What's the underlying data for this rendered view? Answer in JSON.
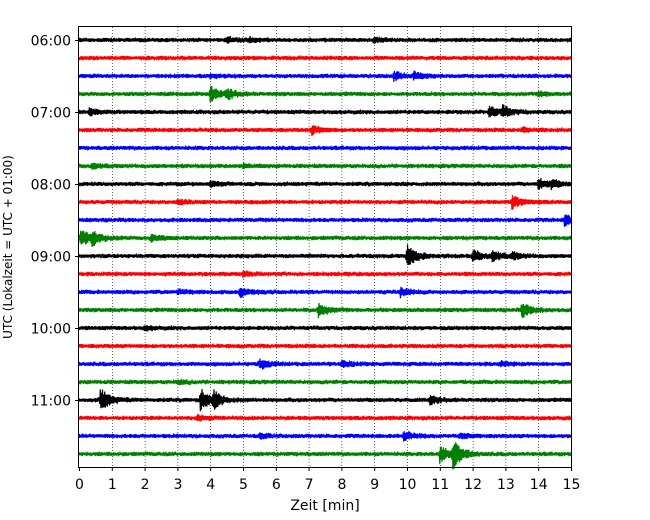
{
  "chart_data": {
    "type": "line",
    "title": "",
    "xlabel": "Zeit  [min]",
    "ylabel": "UTC (Lokalzeit = UTC + 01:00)",
    "xlim": [
      0,
      15
    ],
    "x_ticks": [
      "0",
      "1",
      "2",
      "3",
      "4",
      "5",
      "6",
      "7",
      "8",
      "9",
      "10",
      "11",
      "12",
      "13",
      "14",
      "15"
    ],
    "y_ticks": [
      "06:00",
      "07:00",
      "08:00",
      "09:00",
      "10:00",
      "11:00"
    ],
    "grid": "vertical-dotted",
    "row_interval_min": 15,
    "row_colors": [
      "#000000",
      "#ff0000",
      "#0000ff",
      "#008000"
    ],
    "series": [
      {
        "time": "06:00",
        "events": [
          [
            4.5,
            0.25
          ],
          [
            5.2,
            0.2
          ],
          [
            9.0,
            0.25
          ]
        ]
      },
      {
        "time": "06:15",
        "events": []
      },
      {
        "time": "06:30",
        "events": [
          [
            9.6,
            0.45
          ],
          [
            10.2,
            0.35
          ],
          [
            4.0,
            0.2
          ]
        ]
      },
      {
        "time": "06:45",
        "events": [
          [
            4.0,
            0.9
          ],
          [
            4.5,
            0.5
          ],
          [
            14.0,
            0.25
          ]
        ]
      },
      {
        "time": "07:00",
        "events": [
          [
            12.5,
            0.6
          ],
          [
            12.9,
            0.55
          ],
          [
            0.3,
            0.35
          ]
        ]
      },
      {
        "time": "07:15",
        "events": [
          [
            7.1,
            0.45
          ],
          [
            13.5,
            0.25
          ]
        ]
      },
      {
        "time": "07:30",
        "events": []
      },
      {
        "time": "07:45",
        "events": [
          [
            0.4,
            0.25
          ],
          [
            5.0,
            0.2
          ]
        ]
      },
      {
        "time": "08:00",
        "events": [
          [
            14.0,
            0.6
          ],
          [
            14.4,
            0.35
          ],
          [
            4.0,
            0.25
          ]
        ]
      },
      {
        "time": "08:15",
        "events": [
          [
            13.2,
            0.7
          ],
          [
            3.0,
            0.2
          ]
        ]
      },
      {
        "time": "08:30",
        "events": [
          [
            14.8,
            0.6
          ]
        ]
      },
      {
        "time": "08:45",
        "events": [
          [
            0.05,
            1.0
          ],
          [
            0.4,
            0.6
          ],
          [
            2.2,
            0.35
          ]
        ]
      },
      {
        "time": "09:00",
        "events": [
          [
            10.0,
            1.3
          ],
          [
            12.0,
            0.7
          ],
          [
            12.6,
            0.5
          ],
          [
            13.2,
            0.35
          ]
        ]
      },
      {
        "time": "09:15",
        "events": [
          [
            5.0,
            0.25
          ]
        ]
      },
      {
        "time": "09:30",
        "events": [
          [
            4.9,
            0.55
          ],
          [
            9.8,
            0.5
          ],
          [
            3.0,
            0.25
          ]
        ]
      },
      {
        "time": "09:45",
        "events": [
          [
            7.3,
            0.7
          ],
          [
            13.5,
            0.85
          ]
        ]
      },
      {
        "time": "10:00",
        "events": [
          [
            2.0,
            0.2
          ]
        ]
      },
      {
        "time": "10:15",
        "events": []
      },
      {
        "time": "10:30",
        "events": [
          [
            5.5,
            0.55
          ],
          [
            8.0,
            0.35
          ],
          [
            12.8,
            0.25
          ]
        ]
      },
      {
        "time": "10:45",
        "events": [
          [
            3.0,
            0.2
          ]
        ]
      },
      {
        "time": "11:00",
        "events": [
          [
            0.65,
            1.3
          ],
          [
            3.7,
            1.2
          ],
          [
            4.1,
            0.8
          ],
          [
            10.7,
            0.45
          ]
        ]
      },
      {
        "time": "11:15",
        "events": [
          [
            3.6,
            0.3
          ]
        ]
      },
      {
        "time": "11:30",
        "events": [
          [
            9.9,
            0.5
          ],
          [
            5.5,
            0.25
          ],
          [
            11.6,
            0.25
          ]
        ]
      },
      {
        "time": "11:45",
        "events": [
          [
            11.4,
            1.5
          ],
          [
            11.0,
            0.9
          ]
        ]
      }
    ]
  }
}
